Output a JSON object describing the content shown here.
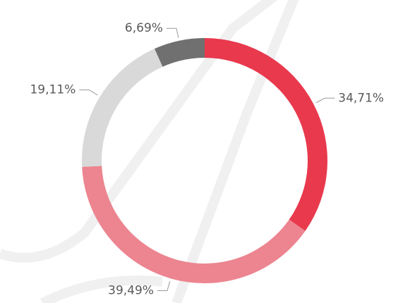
{
  "chart_data": {
    "type": "donut",
    "values": [
      34.71,
      39.49,
      19.11,
      6.69
    ],
    "value_labels": [
      "34,71%",
      "39,49%",
      "19,11%",
      "6,69%"
    ],
    "colors": [
      "#e8394d",
      "#ec8590",
      "#d9d9d9",
      "#707070"
    ]
  }
}
